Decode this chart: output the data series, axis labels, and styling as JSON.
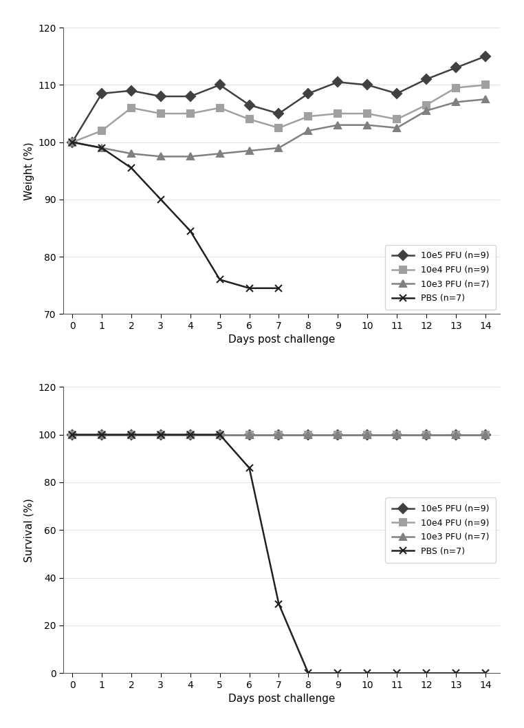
{
  "weight": {
    "days": [
      0,
      1,
      2,
      3,
      4,
      5,
      6,
      7,
      8,
      9,
      10,
      11,
      12,
      13,
      14
    ],
    "10e5": [
      100,
      108.5,
      109.0,
      108.0,
      108.0,
      110.0,
      106.5,
      105.0,
      108.5,
      110.5,
      110.0,
      108.5,
      111.0,
      113.0,
      115.0
    ],
    "10e4": [
      100,
      102.0,
      106.0,
      105.0,
      105.0,
      106.0,
      104.0,
      102.5,
      104.5,
      105.0,
      105.0,
      104.0,
      106.5,
      109.5,
      110.0
    ],
    "10e3": [
      100,
      99.0,
      98.0,
      97.5,
      97.5,
      98.0,
      98.5,
      99.0,
      102.0,
      103.0,
      103.0,
      102.5,
      105.5,
      107.0,
      107.5
    ],
    "pbs": [
      100,
      99.0,
      95.5,
      90.0,
      84.5,
      76.0,
      74.5,
      74.5,
      null,
      null,
      null,
      null,
      null,
      null,
      null
    ]
  },
  "survival": {
    "days": [
      0,
      1,
      2,
      3,
      4,
      5,
      6,
      7,
      8,
      9,
      10,
      11,
      12,
      13,
      14
    ],
    "10e5": [
      100,
      100,
      100,
      100,
      100,
      100,
      100,
      100,
      100,
      100,
      100,
      100,
      100,
      100,
      100
    ],
    "10e4": [
      100,
      100,
      100,
      100,
      100,
      100,
      100,
      100,
      100,
      100,
      100,
      100,
      100,
      100,
      100
    ],
    "10e3": [
      100,
      100,
      100,
      100,
      100,
      100,
      100,
      100,
      100,
      100,
      100,
      100,
      100,
      100,
      100
    ],
    "pbs": [
      100,
      100,
      100,
      100,
      100,
      100,
      86.0,
      29.0,
      0,
      0,
      0,
      0,
      0,
      0,
      0
    ]
  },
  "colors": {
    "10e5": "#404040",
    "10e4": "#a0a0a0",
    "10e3": "#808080",
    "pbs": "#202020"
  },
  "markers": {
    "10e5": "D",
    "10e4": "s",
    "10e3": "^",
    "pbs": "x"
  },
  "legend_labels": {
    "10e5": "10e5 PFU (n=9)",
    "10e4": "10e4 PFU (n=9)",
    "10e3": "10e3 PFU (n=7)",
    "pbs": "PBS (n=7)"
  },
  "weight_ylim": [
    70,
    120
  ],
  "survival_ylim": [
    0,
    120
  ],
  "weight_yticks": [
    70,
    80,
    90,
    100,
    110,
    120
  ],
  "survival_yticks": [
    0,
    20,
    40,
    60,
    80,
    100,
    120
  ],
  "xticks": [
    0,
    1,
    2,
    3,
    4,
    5,
    6,
    7,
    8,
    9,
    10,
    11,
    12,
    13,
    14
  ],
  "xlabel": "Days post challenge",
  "weight_ylabel": "Weight (%)",
  "survival_ylabel": "Survival (%)",
  "background_color": "#ffffff",
  "panel_bg": "#f5f5f5"
}
